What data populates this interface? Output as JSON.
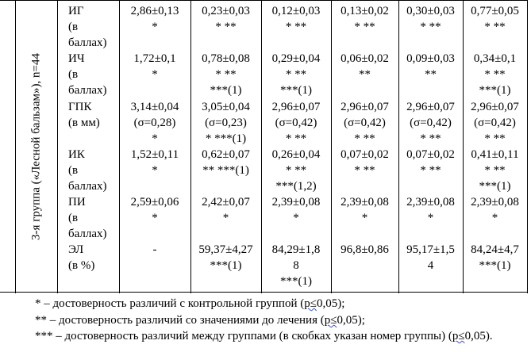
{
  "group_label": "3-я группа («Лесной бальзам»), n=44",
  "rows": [
    {
      "label": [
        "ИГ",
        "(в",
        "баллах)"
      ],
      "cells": [
        [
          "2,86±0,13",
          "*"
        ],
        [
          "0,23±0,03",
          "* **"
        ],
        [
          "0,12±0,03",
          "* **"
        ],
        [
          "0,13±0,02",
          "* **"
        ],
        [
          "0,30±0,03",
          "* **"
        ],
        [
          "0,77±0,05",
          "* **"
        ]
      ]
    },
    {
      "label": [
        "ИЧ",
        "(в",
        "баллах)"
      ],
      "cells": [
        [
          "1,72±0,1",
          "*"
        ],
        [
          "0,78±0,08",
          "* **",
          "***(1)"
        ],
        [
          "0,29±0,04",
          "* **",
          "***(1)"
        ],
        [
          "0,06±0,02",
          "**"
        ],
        [
          "0,09±0,03",
          "**"
        ],
        [
          "0,34±0,1",
          "* **",
          "***(1)"
        ]
      ]
    },
    {
      "label": [
        "ГПК",
        "(в мм)"
      ],
      "cells": [
        [
          "3,14±0,04",
          "(σ=0,28)",
          "*"
        ],
        [
          "3,05±0,04",
          "(σ=0,23)",
          "* ***(1)"
        ],
        [
          "2,96±0,07",
          "(σ=0,42)",
          "* **"
        ],
        [
          "2,96±0,07",
          "(σ=0,42)",
          "* **"
        ],
        [
          "2,96±0,07",
          "(σ=0,42)",
          "* **"
        ],
        [
          "2,96±0,07",
          "(σ=0,42)",
          "* **"
        ]
      ]
    },
    {
      "label": [
        "ИК",
        "(в",
        "баллах)"
      ],
      "cells": [
        [
          "1,52±0,11",
          "*"
        ],
        [
          "0,62±0,07",
          "** ***(1)"
        ],
        [
          "0,26±0,04",
          "* **",
          "***(1,2)"
        ],
        [
          "0,07±0,02",
          "* **"
        ],
        [
          "0,07±0,02",
          "* **"
        ],
        [
          "0,41±0,11",
          "* **",
          "***(1)"
        ]
      ]
    },
    {
      "label": [
        "ПИ",
        "(в",
        "баллах)"
      ],
      "cells": [
        [
          "2,59±0,06",
          "*"
        ],
        [
          "2,42±0,07",
          "*"
        ],
        [
          "2,39±0,08",
          "*"
        ],
        [
          "2,39±0,08",
          "*"
        ],
        [
          "2,39±0,08",
          "*"
        ],
        [
          "2,39±0,08",
          "*"
        ]
      ]
    },
    {
      "label": [
        "ЭЛ",
        "(в %)"
      ],
      "cells": [
        [
          "-"
        ],
        [
          "59,37±4,27",
          "***(1)"
        ],
        [
          "84,29±1,8",
          "8",
          "***(1)"
        ],
        [
          "96,8±0,86"
        ],
        [
          "95,17±1,5",
          "4"
        ],
        [
          "84,24±4,7",
          "***(1)"
        ]
      ]
    }
  ],
  "footnotes": {
    "f1_text": "* – достоверность различий с контрольной группой (",
    "f1_wavy": "р≤",
    "f1_end": "0,05);",
    "f2_text": "** – достоверность различий со значениями до лечения (",
    "f2_wavy": "р≤",
    "f2_end": "0,05);",
    "f3_text": "*** – достоверность различий между группами (в скобках указан номер группы) (",
    "f3_wavy": "р≤",
    "f3_end": "0,05)."
  }
}
